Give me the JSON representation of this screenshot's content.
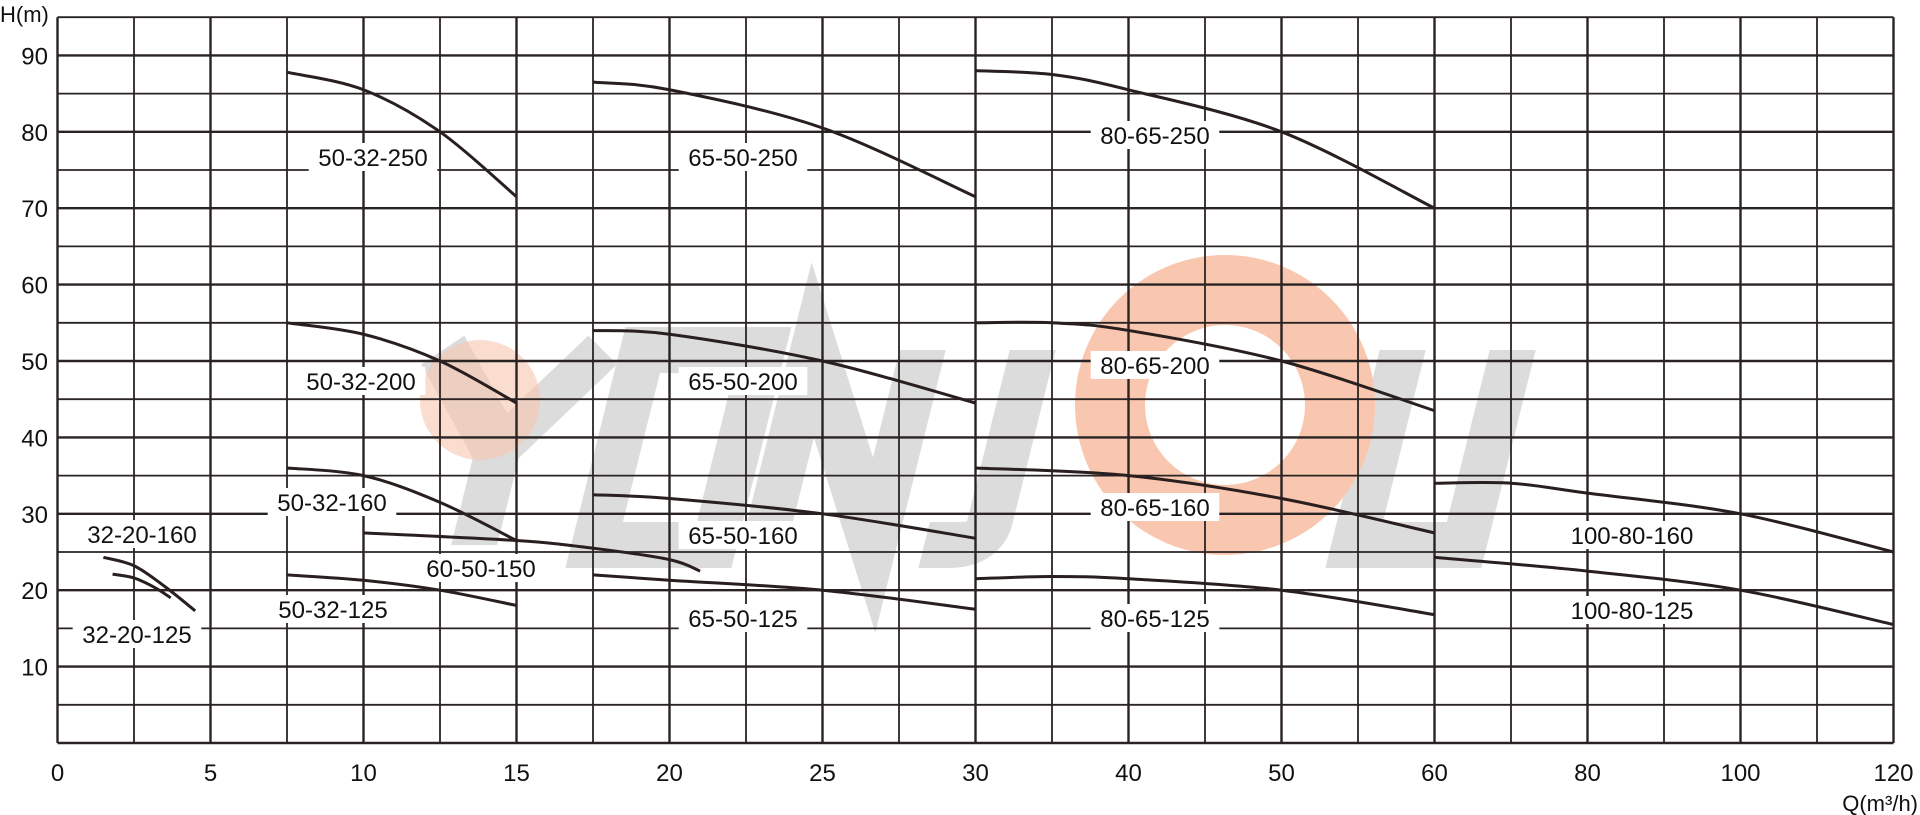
{
  "watermark": "YONJOU",
  "colors": {
    "grid": "#2a2323",
    "curve": "#2a1f1f",
    "watermark_text": "#dcdcdc",
    "watermark_logo": "#f9c7b0"
  },
  "chart_data": {
    "type": "line",
    "title": "",
    "xlabel": "Q(m³/h)",
    "ylabel": "H(m)",
    "x_scale": "piecewise linear (0-15, 15-30, 30-60, 60-120 each spanning equal width)",
    "xlim": [
      0,
      120
    ],
    "ylim": [
      0,
      95
    ],
    "grid": true,
    "x_ticks": [
      "0",
      "5",
      "10",
      "15",
      "20",
      "25",
      "30",
      "40",
      "50",
      "60",
      "80",
      "100",
      "120"
    ],
    "y_ticks": [
      "10",
      "20",
      "30",
      "40",
      "50",
      "60",
      "70",
      "80",
      "90"
    ],
    "series": [
      {
        "name": "32-20-160",
        "x": [
          1.5,
          2.5,
          3.5,
          4.5
        ],
        "y": [
          24.3,
          23.2,
          20.5,
          17.3
        ]
      },
      {
        "name": "32-20-125",
        "x": [
          1.8,
          2.5,
          3.2,
          3.7
        ],
        "y": [
          22.1,
          21.6,
          20.3,
          19.0
        ]
      },
      {
        "name": "50-32-250",
        "x": [
          7.5,
          10,
          12.5,
          15
        ],
        "y": [
          87.8,
          85.5,
          80,
          71.5
        ]
      },
      {
        "name": "50-32-200",
        "x": [
          7.5,
          10,
          12.5,
          15
        ],
        "y": [
          55,
          53.5,
          50,
          44.5
        ]
      },
      {
        "name": "50-32-160",
        "x": [
          7.5,
          10,
          12.5,
          15
        ],
        "y": [
          36,
          35,
          31.5,
          26.5
        ]
      },
      {
        "name": "50-32-125",
        "x": [
          7.5,
          10,
          12.5,
          15
        ],
        "y": [
          22,
          21.3,
          20,
          18
        ]
      },
      {
        "name": "60-50-150",
        "x": [
          10,
          15,
          17.5,
          20,
          21
        ],
        "y": [
          27.5,
          26.5,
          25.5,
          24,
          22.5
        ]
      },
      {
        "name": "65-50-250",
        "x": [
          17.5,
          20,
          25,
          30
        ],
        "y": [
          86.5,
          85.5,
          80.5,
          71.5
        ]
      },
      {
        "name": "65-50-200",
        "x": [
          17.5,
          20,
          25,
          30
        ],
        "y": [
          54,
          53.5,
          50,
          44.5
        ]
      },
      {
        "name": "65-50-160",
        "x": [
          17.5,
          20,
          25,
          30
        ],
        "y": [
          32.5,
          32,
          30,
          26.8
        ]
      },
      {
        "name": "65-50-125",
        "x": [
          17.5,
          20,
          25,
          30
        ],
        "y": [
          22,
          21.3,
          20,
          17.5
        ]
      },
      {
        "name": "80-65-250",
        "x": [
          30,
          35,
          40,
          50,
          60
        ],
        "y": [
          88,
          87.5,
          85.5,
          80,
          70
        ]
      },
      {
        "name": "80-65-200",
        "x": [
          30,
          35,
          40,
          50,
          60
        ],
        "y": [
          55,
          55,
          54,
          50,
          43.5
        ]
      },
      {
        "name": "80-65-160",
        "x": [
          30,
          40,
          50,
          60
        ],
        "y": [
          36,
          35,
          32,
          27.5
        ]
      },
      {
        "name": "80-65-125",
        "x": [
          30,
          35,
          40,
          50,
          60
        ],
        "y": [
          21.5,
          21.8,
          21.5,
          20,
          16.8
        ]
      },
      {
        "name": "100-80-160",
        "x": [
          60,
          70,
          80,
          100,
          120
        ],
        "y": [
          34,
          34,
          32.7,
          30,
          25
        ]
      },
      {
        "name": "100-80-125",
        "x": [
          60,
          80,
          100,
          120
        ],
        "y": [
          24.3,
          22.5,
          20,
          15.5
        ]
      }
    ]
  }
}
